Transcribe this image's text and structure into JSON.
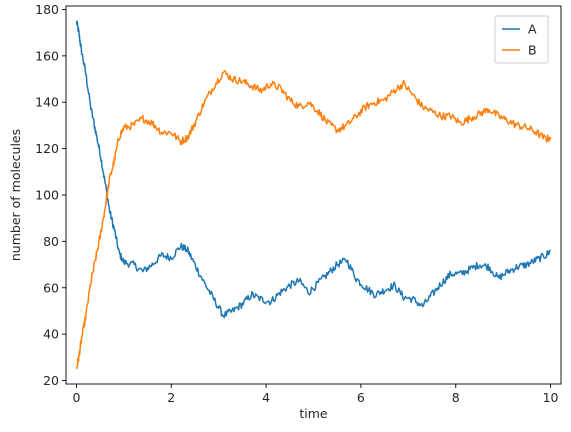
{
  "chart_data": {
    "type": "line",
    "title": "",
    "xlabel": "time",
    "ylabel": "number of molecules",
    "xlim": [
      -0.22,
      10.22
    ],
    "ylim": [
      18.5,
      181.5
    ],
    "xticks": [
      0,
      2,
      4,
      6,
      8,
      10
    ],
    "yticks": [
      20,
      40,
      60,
      80,
      100,
      120,
      140,
      160,
      180
    ],
    "grid": false,
    "legend": {
      "placement": "top-right"
    },
    "series": [
      {
        "name": "A",
        "color": "#1f77b4",
        "x": [
          0.0,
          0.05,
          0.1,
          0.2,
          0.3,
          0.4,
          0.5,
          0.6,
          0.7,
          0.8,
          0.9,
          1.0,
          1.2,
          1.4,
          1.6,
          1.8,
          2.0,
          2.2,
          2.35,
          2.5,
          2.7,
          2.9,
          3.1,
          3.3,
          3.5,
          3.7,
          3.9,
          4.1,
          4.3,
          4.5,
          4.7,
          4.9,
          5.1,
          5.3,
          5.5,
          5.7,
          5.9,
          6.1,
          6.3,
          6.5,
          6.7,
          6.9,
          7.1,
          7.3,
          7.5,
          7.7,
          7.9,
          8.1,
          8.3,
          8.5,
          8.7,
          8.9,
          9.1,
          9.3,
          9.5,
          9.7,
          9.9,
          10.0
        ],
        "values": [
          175,
          170,
          163,
          152,
          138,
          128,
          118,
          106,
          93,
          85,
          75,
          71,
          70,
          67,
          70,
          74,
          73,
          78,
          76,
          70,
          62,
          55,
          48,
          50,
          53,
          57,
          55,
          54,
          58,
          61,
          63,
          58,
          62,
          66,
          70,
          72,
          64,
          60,
          57,
          59,
          61,
          56,
          55,
          52,
          57,
          62,
          66,
          66,
          68,
          70,
          69,
          64,
          67,
          69,
          70,
          72,
          74,
          76
        ]
      },
      {
        "name": "B",
        "color": "#ff7f0e",
        "x": [
          0.0,
          0.05,
          0.1,
          0.2,
          0.3,
          0.4,
          0.5,
          0.6,
          0.7,
          0.8,
          0.9,
          1.0,
          1.2,
          1.4,
          1.6,
          1.8,
          2.0,
          2.2,
          2.35,
          2.5,
          2.7,
          2.9,
          3.1,
          3.3,
          3.5,
          3.7,
          3.9,
          4.1,
          4.3,
          4.5,
          4.7,
          4.9,
          5.1,
          5.3,
          5.5,
          5.7,
          5.9,
          6.1,
          6.3,
          6.5,
          6.7,
          6.9,
          7.1,
          7.3,
          7.5,
          7.7,
          7.9,
          8.1,
          8.3,
          8.5,
          8.7,
          8.9,
          9.1,
          9.3,
          9.5,
          9.7,
          9.9,
          10.0
        ],
        "values": [
          25,
          30,
          37,
          48,
          62,
          72,
          82,
          94,
          107,
          115,
          125,
          129,
          130,
          133,
          131,
          127,
          127,
          123,
          125,
          131,
          140,
          147,
          153,
          150,
          149,
          147,
          145,
          148,
          146,
          141,
          138,
          140,
          136,
          131,
          128,
          130,
          134,
          138,
          140,
          141,
          145,
          148,
          143,
          138,
          136,
          134,
          134,
          131,
          133,
          135,
          137,
          134,
          132,
          130,
          129,
          127,
          124,
          125
        ]
      }
    ]
  }
}
